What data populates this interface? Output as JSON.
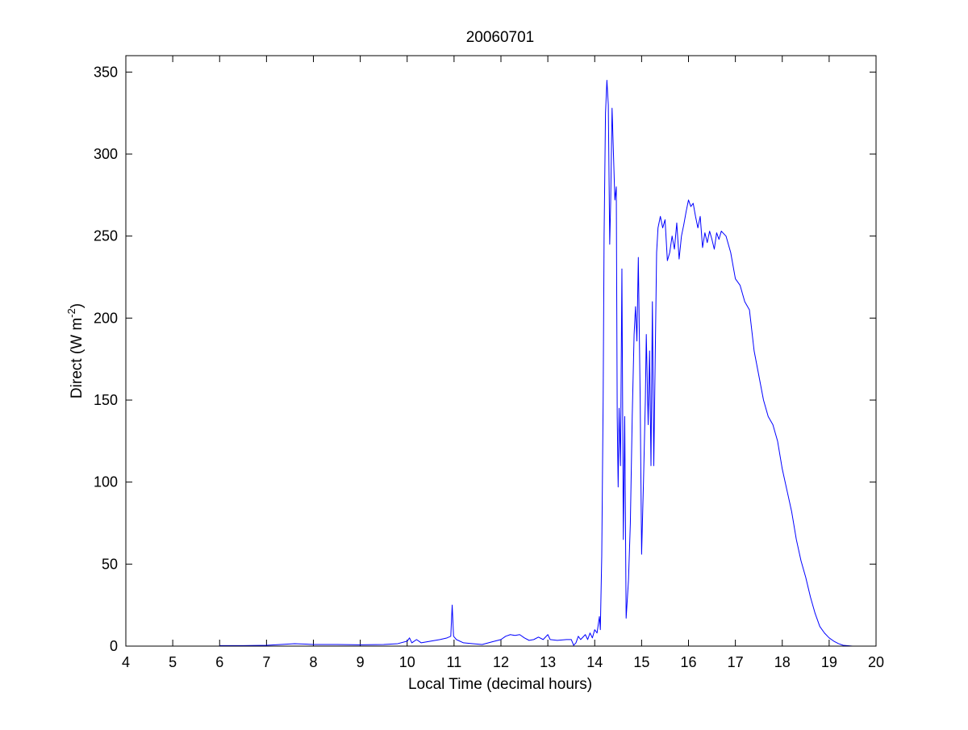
{
  "figure": {
    "background": "#ffffff"
  },
  "chart_data": {
    "type": "line",
    "title": "20060701",
    "xlabel": "Local Time (decimal hours)",
    "ylabel_main": "Direct (W m",
    "ylabel_sup": "-2",
    "ylabel_tail": ")",
    "xlim": [
      4,
      20
    ],
    "ylim": [
      0,
      360
    ],
    "xticks": [
      4,
      5,
      6,
      7,
      8,
      9,
      10,
      11,
      12,
      13,
      14,
      15,
      16,
      17,
      18,
      19,
      20
    ],
    "yticks": [
      0,
      50,
      100,
      150,
      200,
      250,
      300,
      350
    ],
    "grid": false,
    "legend": "none",
    "series": [
      {
        "color": "#0000ff",
        "points": [
          [
            6.0,
            0.3
          ],
          [
            6.5,
            0.3
          ],
          [
            7.0,
            0.5
          ],
          [
            7.3,
            1.0
          ],
          [
            7.6,
            1.5
          ],
          [
            8.0,
            1.0
          ],
          [
            8.5,
            1.0
          ],
          [
            9.0,
            0.8
          ],
          [
            9.5,
            1.0
          ],
          [
            9.8,
            1.5
          ],
          [
            10.0,
            3.0
          ],
          [
            10.05,
            5.0
          ],
          [
            10.1,
            2.0
          ],
          [
            10.2,
            4.0
          ],
          [
            10.3,
            2.0
          ],
          [
            10.5,
            3.0
          ],
          [
            10.7,
            4.0
          ],
          [
            10.85,
            5.0
          ],
          [
            10.93,
            6.0
          ],
          [
            10.96,
            25.0
          ],
          [
            10.99,
            6.0
          ],
          [
            11.05,
            4.0
          ],
          [
            11.2,
            2.0
          ],
          [
            11.4,
            1.5
          ],
          [
            11.6,
            1.0
          ],
          [
            11.8,
            2.5
          ],
          [
            12.0,
            4.0
          ],
          [
            12.1,
            6.0
          ],
          [
            12.2,
            7.0
          ],
          [
            12.3,
            6.5
          ],
          [
            12.4,
            7.0
          ],
          [
            12.5,
            5.0
          ],
          [
            12.6,
            3.5
          ],
          [
            12.7,
            4.0
          ],
          [
            12.8,
            5.5
          ],
          [
            12.9,
            4.0
          ],
          [
            13.0,
            7.0
          ],
          [
            13.05,
            4.0
          ],
          [
            13.2,
            3.5
          ],
          [
            13.4,
            4.0
          ],
          [
            13.5,
            4.0
          ],
          [
            13.55,
            0.5
          ],
          [
            13.6,
            2.0
          ],
          [
            13.65,
            6.0
          ],
          [
            13.7,
            4.0
          ],
          [
            13.8,
            7.0
          ],
          [
            13.85,
            4.0
          ],
          [
            13.9,
            8.0
          ],
          [
            13.95,
            5.0
          ],
          [
            14.0,
            10.0
          ],
          [
            14.05,
            8.0
          ],
          [
            14.1,
            18.0
          ],
          [
            14.12,
            10.0
          ],
          [
            14.15,
            55.0
          ],
          [
            14.18,
            150.0
          ],
          [
            14.2,
            250.0
          ],
          [
            14.23,
            325.0
          ],
          [
            14.26,
            345.0
          ],
          [
            14.29,
            330.0
          ],
          [
            14.32,
            245.0
          ],
          [
            14.34,
            270.0
          ],
          [
            14.37,
            328.0
          ],
          [
            14.4,
            300.0
          ],
          [
            14.43,
            272.0
          ],
          [
            14.46,
            280.0
          ],
          [
            14.48,
            140.0
          ],
          [
            14.5,
            97.0
          ],
          [
            14.52,
            145.0
          ],
          [
            14.55,
            110.0
          ],
          [
            14.58,
            230.0
          ],
          [
            14.61,
            65.0
          ],
          [
            14.64,
            140.0
          ],
          [
            14.67,
            17.0
          ],
          [
            14.72,
            40.0
          ],
          [
            14.76,
            75.0
          ],
          [
            14.8,
            140.0
          ],
          [
            14.84,
            190.0
          ],
          [
            14.87,
            207.0
          ],
          [
            14.9,
            186.0
          ],
          [
            14.93,
            237.0
          ],
          [
            14.97,
            150.0
          ],
          [
            15.0,
            56.0
          ],
          [
            15.04,
            100.0
          ],
          [
            15.08,
            150.0
          ],
          [
            15.1,
            190.0
          ],
          [
            15.14,
            135.0
          ],
          [
            15.17,
            180.0
          ],
          [
            15.2,
            110.0
          ],
          [
            15.23,
            210.0
          ],
          [
            15.26,
            110.0
          ],
          [
            15.29,
            175.0
          ],
          [
            15.32,
            240.0
          ],
          [
            15.35,
            255.0
          ],
          [
            15.4,
            262.0
          ],
          [
            15.45,
            255.0
          ],
          [
            15.5,
            260.0
          ],
          [
            15.55,
            235.0
          ],
          [
            15.6,
            240.0
          ],
          [
            15.65,
            250.0
          ],
          [
            15.7,
            242.0
          ],
          [
            15.75,
            258.0
          ],
          [
            15.8,
            236.0
          ],
          [
            15.85,
            250.0
          ],
          [
            15.9,
            257.0
          ],
          [
            15.95,
            265.0
          ],
          [
            16.0,
            272.0
          ],
          [
            16.05,
            268.0
          ],
          [
            16.1,
            270.0
          ],
          [
            16.15,
            262.0
          ],
          [
            16.2,
            255.0
          ],
          [
            16.25,
            262.0
          ],
          [
            16.3,
            243.0
          ],
          [
            16.35,
            252.0
          ],
          [
            16.4,
            246.0
          ],
          [
            16.45,
            253.0
          ],
          [
            16.5,
            248.0
          ],
          [
            16.55,
            242.0
          ],
          [
            16.6,
            252.0
          ],
          [
            16.65,
            248.0
          ],
          [
            16.7,
            253.0
          ],
          [
            16.8,
            250.0
          ],
          [
            16.9,
            240.0
          ],
          [
            17.0,
            224.0
          ],
          [
            17.1,
            220.0
          ],
          [
            17.2,
            210.0
          ],
          [
            17.3,
            205.0
          ],
          [
            17.4,
            180.0
          ],
          [
            17.5,
            165.0
          ],
          [
            17.6,
            150.0
          ],
          [
            17.7,
            140.0
          ],
          [
            17.8,
            135.0
          ],
          [
            17.9,
            125.0
          ],
          [
            18.0,
            108.0
          ],
          [
            18.1,
            95.0
          ],
          [
            18.2,
            82.0
          ],
          [
            18.3,
            65.0
          ],
          [
            18.4,
            52.0
          ],
          [
            18.5,
            42.0
          ],
          [
            18.6,
            30.0
          ],
          [
            18.7,
            20.0
          ],
          [
            18.8,
            12.0
          ],
          [
            18.9,
            8.0
          ],
          [
            19.0,
            5.0
          ],
          [
            19.1,
            3.0
          ],
          [
            19.2,
            1.5
          ],
          [
            19.3,
            0.5
          ],
          [
            19.5,
            0.0
          ]
        ]
      }
    ]
  }
}
